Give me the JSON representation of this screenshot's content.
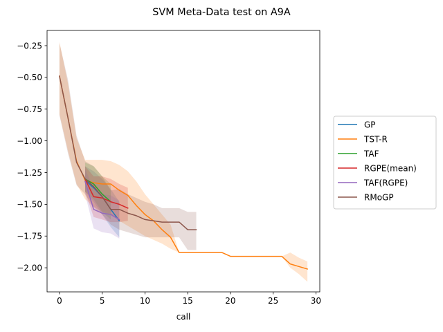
{
  "chart_data": {
    "type": "line",
    "title": "SVM Meta-Data test on A9A",
    "xlabel": "call",
    "ylabel": "",
    "xlim": [
      -1.45,
      30.45
    ],
    "ylim": [
      -2.19,
      -0.13
    ],
    "xticks": [
      0,
      5,
      10,
      15,
      20,
      25,
      30
    ],
    "yticks": [
      -2.0,
      -1.75,
      -1.5,
      -1.25,
      -1.0,
      -0.75,
      -0.5,
      -0.25
    ],
    "grid": false,
    "legend_position": "right-outside",
    "series": [
      {
        "name": "GP",
        "color": "#1f77b4",
        "x": [
          3,
          4,
          5,
          6,
          7
        ],
        "y": [
          -1.31,
          -1.37,
          -1.44,
          -1.54,
          -1.63
        ],
        "lower": [
          -1.4,
          -1.48,
          -1.58,
          -1.68,
          -1.76
        ],
        "upper": [
          -1.2,
          -1.24,
          -1.3,
          -1.38,
          -1.48
        ]
      },
      {
        "name": "TST-R",
        "color": "#ff7f0e",
        "x": [
          0,
          1,
          2,
          3,
          4,
          5,
          6,
          7,
          8,
          9,
          10,
          11,
          12,
          13,
          14,
          15,
          16,
          17,
          18,
          19,
          20,
          21,
          22,
          23,
          24,
          25,
          26,
          27,
          28,
          29
        ],
        "y": [
          -0.49,
          -0.82,
          -1.16,
          -1.31,
          -1.33,
          -1.34,
          -1.34,
          -1.39,
          -1.43,
          -1.51,
          -1.58,
          -1.63,
          -1.7,
          -1.76,
          -1.88,
          -1.88,
          -1.88,
          -1.88,
          -1.88,
          -1.88,
          -1.91,
          -1.91,
          -1.91,
          -1.91,
          -1.91,
          -1.91,
          -1.91,
          -1.97,
          -1.99,
          -2.01
        ],
        "lower": [
          -0.79,
          -1.08,
          -1.34,
          -1.46,
          -1.52,
          -1.56,
          -1.58,
          -1.63,
          -1.67,
          -1.71,
          -1.75,
          -1.78,
          -1.81,
          -1.85,
          -1.88,
          -1.88,
          -1.88,
          -1.88,
          -1.88,
          -1.88,
          -1.91,
          -1.91,
          -1.91,
          -1.91,
          -1.91,
          -1.91,
          -1.91,
          -2.0,
          -2.05,
          -2.11
        ],
        "upper": [
          -0.22,
          -0.55,
          -0.98,
          -1.15,
          -1.15,
          -1.15,
          -1.16,
          -1.19,
          -1.24,
          -1.32,
          -1.42,
          -1.5,
          -1.58,
          -1.66,
          -1.88,
          -1.88,
          -1.88,
          -1.88,
          -1.88,
          -1.88,
          -1.91,
          -1.91,
          -1.91,
          -1.91,
          -1.91,
          -1.91,
          -1.91,
          -1.88,
          -1.92,
          -1.95
        ]
      },
      {
        "name": "TAF",
        "color": "#2ca02c",
        "x": [
          3,
          4,
          5,
          6
        ],
        "y": [
          -1.3,
          -1.34,
          -1.42,
          -1.48
        ],
        "lower": [
          -1.4,
          -1.46,
          -1.56,
          -1.62
        ],
        "upper": [
          -1.17,
          -1.2,
          -1.28,
          -1.34
        ]
      },
      {
        "name": "RGPE(mean)",
        "color": "#d62728",
        "x": [
          3,
          4,
          5,
          6,
          7,
          8
        ],
        "y": [
          -1.3,
          -1.44,
          -1.45,
          -1.48,
          -1.5,
          -1.53
        ],
        "lower": [
          -1.4,
          -1.6,
          -1.62,
          -1.64,
          -1.64,
          -1.63
        ],
        "upper": [
          -1.2,
          -1.28,
          -1.28,
          -1.3,
          -1.34,
          -1.37
        ]
      },
      {
        "name": "TAF(RGPE)",
        "color": "#9467bd",
        "x": [
          3,
          4,
          5,
          6,
          7
        ],
        "y": [
          -1.32,
          -1.54,
          -1.57,
          -1.58,
          -1.62
        ],
        "lower": [
          -1.42,
          -1.69,
          -1.72,
          -1.73,
          -1.77
        ],
        "upper": [
          -1.22,
          -1.38,
          -1.42,
          -1.43,
          -1.47
        ]
      },
      {
        "name": "RMoGP",
        "color": "#8c564b",
        "x": [
          0,
          1,
          2,
          3,
          4,
          5,
          6,
          7,
          8,
          9,
          10,
          11,
          12,
          13,
          14,
          15,
          16
        ],
        "y": [
          -0.49,
          -0.82,
          -1.17,
          -1.3,
          -1.36,
          -1.44,
          -1.54,
          -1.54,
          -1.57,
          -1.59,
          -1.62,
          -1.63,
          -1.64,
          -1.64,
          -1.64,
          -1.7,
          -1.7
        ],
        "lower": [
          -0.8,
          -1.1,
          -1.35,
          -1.42,
          -1.52,
          -1.58,
          -1.66,
          -1.7,
          -1.72,
          -1.74,
          -1.76,
          -1.76,
          -1.76,
          -1.76,
          -1.76,
          -1.86,
          -1.86
        ],
        "upper": [
          -0.23,
          -0.52,
          -0.96,
          -1.16,
          -1.2,
          -1.28,
          -1.39,
          -1.38,
          -1.42,
          -1.45,
          -1.48,
          -1.5,
          -1.53,
          -1.53,
          -1.53,
          -1.56,
          -1.56
        ]
      }
    ]
  }
}
